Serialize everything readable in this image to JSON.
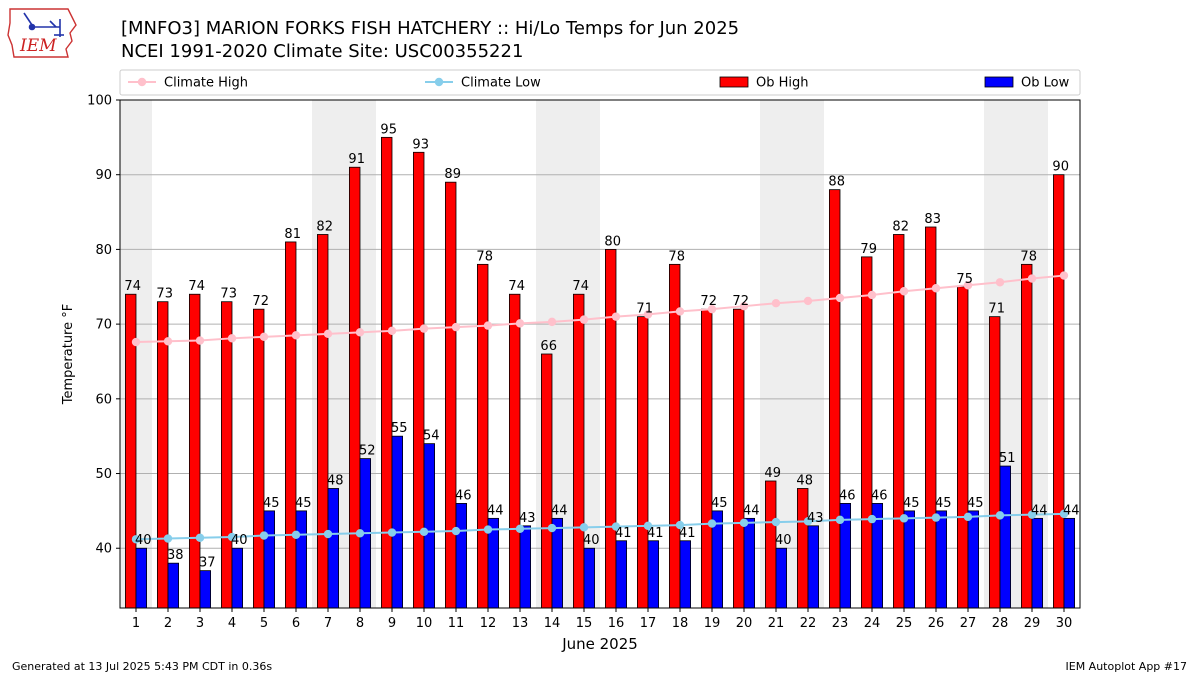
{
  "header": {
    "title_line1": "[MNFO3] MARION FORKS FISH HATCHERY :: Hi/Lo Temps for Jun 2025",
    "title_line2": "NCEI 1991-2020 Climate Site: USC00355221"
  },
  "logo": {
    "text": "IEM",
    "color": "#cc2222"
  },
  "footer": {
    "left": "Generated at 13 Jul 2025 5:43 PM CDT in 0.36s",
    "right": "IEM Autoplot App #17"
  },
  "chart_data": {
    "type": "bar",
    "xlabel": "June 2025",
    "ylabel": "Temperature °F",
    "ylim": [
      32,
      100
    ],
    "yticks": [
      40,
      50,
      60,
      70,
      80,
      90,
      100
    ],
    "grid": true,
    "legend_position": "top",
    "categories": [
      "1",
      "2",
      "3",
      "4",
      "5",
      "6",
      "7",
      "8",
      "9",
      "10",
      "11",
      "12",
      "13",
      "14",
      "15",
      "16",
      "17",
      "18",
      "19",
      "20",
      "21",
      "22",
      "23",
      "24",
      "25",
      "26",
      "27",
      "28",
      "29",
      "30"
    ],
    "weekend_shading_days": [
      1,
      7,
      8,
      14,
      15,
      21,
      22,
      28,
      29
    ],
    "shading_color": "#eeeeee",
    "series": [
      {
        "name": "Climate High",
        "kind": "line",
        "color": "#ffc0cb",
        "values": [
          67.6,
          67.7,
          67.8,
          68.1,
          68.3,
          68.5,
          68.7,
          68.9,
          69.1,
          69.4,
          69.6,
          69.8,
          70.1,
          70.3,
          70.6,
          71.0,
          71.3,
          71.7,
          72.0,
          72.4,
          72.8,
          73.1,
          73.5,
          73.9,
          74.4,
          74.8,
          75.2,
          75.6,
          76.1,
          76.5
        ]
      },
      {
        "name": "Climate Low",
        "kind": "line",
        "color": "#87ceeb",
        "values": [
          41.2,
          41.3,
          41.4,
          41.5,
          41.7,
          41.8,
          41.9,
          42.0,
          42.1,
          42.2,
          42.3,
          42.5,
          42.6,
          42.7,
          42.8,
          42.9,
          43.0,
          43.1,
          43.3,
          43.4,
          43.5,
          43.6,
          43.8,
          43.9,
          44.0,
          44.1,
          44.2,
          44.4,
          44.5,
          44.6
        ]
      },
      {
        "name": "Ob High",
        "kind": "bar",
        "color": "#ff0000",
        "values": [
          74,
          73,
          74,
          73,
          72,
          81,
          82,
          91,
          95,
          93,
          89,
          78,
          74,
          66,
          74,
          80,
          71,
          78,
          72,
          72,
          49,
          48,
          88,
          79,
          82,
          83,
          75,
          71,
          78,
          90
        ]
      },
      {
        "name": "Ob Low",
        "kind": "bar",
        "color": "#0000ff",
        "values": [
          40,
          38,
          37,
          40,
          45,
          45,
          48,
          52,
          55,
          54,
          46,
          44,
          43,
          44,
          40,
          41,
          41,
          41,
          45,
          44,
          40,
          43,
          46,
          46,
          45,
          45,
          45,
          51,
          44,
          44
        ]
      }
    ]
  }
}
